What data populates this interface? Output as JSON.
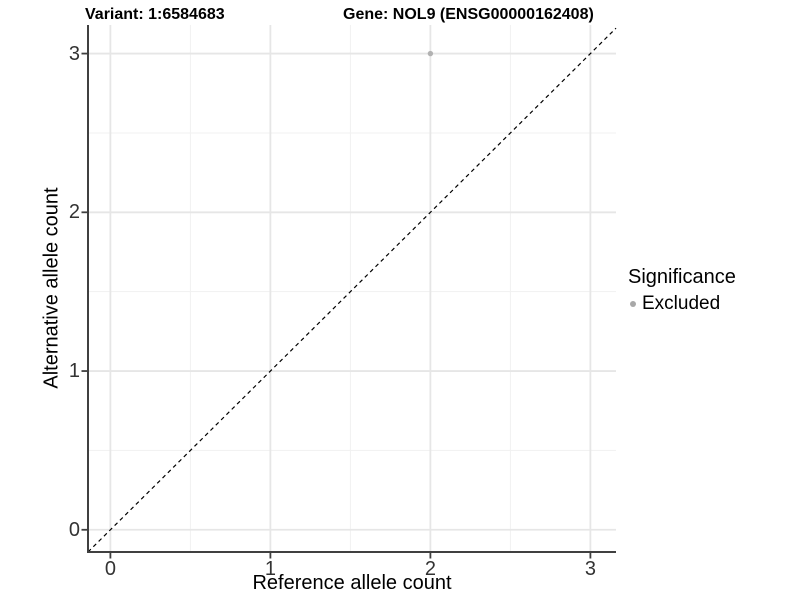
{
  "header": {
    "title_variant": "Variant: 1:6584683",
    "title_gene": "Gene: NOL9 (ENSG00000162408)"
  },
  "chart_data": {
    "type": "scatter",
    "title": "Variant: 1:6584683 | Gene: NOL9 (ENSG00000162408)",
    "xlabel": "Reference allele count",
    "ylabel": "Alternative allele count",
    "xlim": [
      -0.14,
      3.16
    ],
    "ylim": [
      -0.14,
      3.18
    ],
    "x_ticks": [
      0,
      1,
      2,
      3
    ],
    "y_ticks": [
      0,
      1,
      2,
      3
    ],
    "x_minor_ticks": [
      0.5,
      1.5,
      2.5
    ],
    "y_minor_ticks": [
      0.5,
      1.5,
      2.5
    ],
    "grid": "major and minor gridlines on, white background",
    "identity_line": {
      "style": "dashed",
      "slope": 1,
      "intercept": 0
    },
    "series": [
      {
        "name": "Excluded",
        "color": "#b2b2b2",
        "points": [
          {
            "x": 2,
            "y": 3
          }
        ]
      }
    ],
    "legend": {
      "title": "Significance",
      "position": "right",
      "entries": [
        {
          "label": "Excluded",
          "color": "#a8a8a8"
        }
      ]
    }
  },
  "colors": {
    "background": "#ffffff",
    "grid_major": "#e6e6e6",
    "grid_minor": "#f1f1f1",
    "axis_line": "#404040",
    "tick_label": "#333333",
    "identity_line": "#000000"
  }
}
